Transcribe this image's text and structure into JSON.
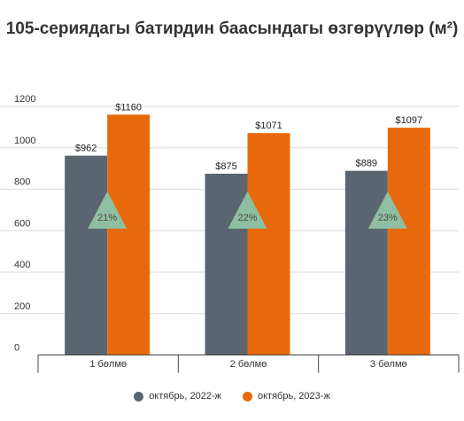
{
  "title": "105-сериядагы батирдин баасындагы өзгөрүүлөр (м²)",
  "colors": {
    "series_2022": "#5b6570",
    "series_2023": "#e8690b",
    "change_marker": "#8ebfa0",
    "axis": "#444444",
    "grid": "#dcdcdc"
  },
  "chart_data": {
    "type": "bar",
    "categories": [
      "1 бөлмө",
      "2 бөлмө",
      "3 бөлмө"
    ],
    "series": [
      {
        "name": "октябрь, 2022-ж",
        "values": [
          962,
          875,
          889
        ],
        "labels": [
          "$962",
          "$875",
          "$889"
        ]
      },
      {
        "name": "октябрь, 2023-ж",
        "values": [
          1160,
          1071,
          1097
        ],
        "labels": [
          "$1160",
          "$1071",
          "$1097"
        ]
      }
    ],
    "changes": [
      "21%",
      "22%",
      "23%"
    ],
    "yticks": [
      0,
      200,
      400,
      600,
      800,
      1000,
      1200
    ],
    "ylim": [
      0,
      1200
    ],
    "grid": true,
    "legend": "bottom"
  }
}
